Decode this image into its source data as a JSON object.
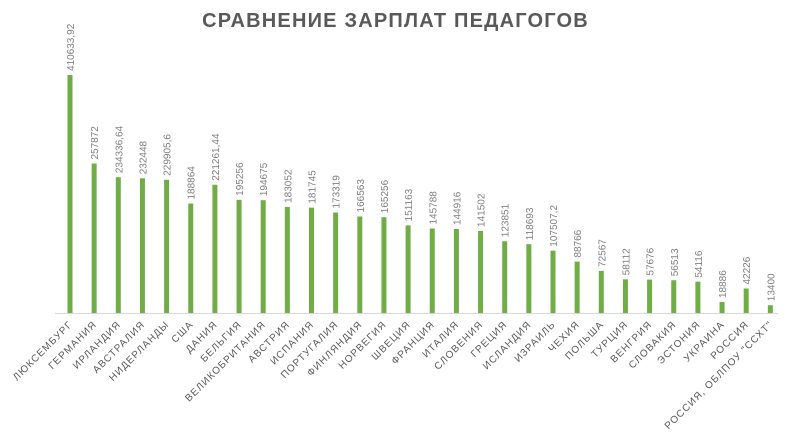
{
  "chart_data": {
    "type": "bar",
    "title": "СРАВНЕНИЕ ЗАРПЛАТ ПЕДАГОГОВ",
    "xlabel": "",
    "ylabel": "",
    "categories": [
      "ЛЮКСЕМБУРГ",
      "ГЕРМАНИЯ",
      "ИРЛАНДИЯ",
      "АВСТРАЛИЯ",
      "НИДЕРЛАНДЫ",
      "США",
      "ДАНИЯ",
      "БЕЛЬГИЯ",
      "ВЕЛИКОБРИТАНИЯ",
      "АВСТРИЯ",
      "ИСПАНИЯ",
      "ПОРТУГАЛИЯ",
      "ФИНЛЯНДИЯ",
      "НОРВЕГИЯ",
      "ШВЕЦИЯ",
      "ФРАНЦИЯ",
      "ИТАЛИЯ",
      "СЛОВЕНИЯ",
      "ГРЕЦИЯ",
      "ИСЛАНДИЯ",
      "ИЗРАИЛЬ",
      "ЧЕХИЯ",
      "ПОЛЬША",
      "ТУРЦИЯ",
      "ВЕНГРИЯ",
      "СЛОВАКИЯ",
      "ЭСТОНИЯ",
      "УКРАИНА",
      "РОССИЯ",
      "РОССИЯ, ОБЛПОУ \"ССХТ\""
    ],
    "values": [
      410633.92,
      257872,
      234336.64,
      232448,
      229905.6,
      188864,
      221261.44,
      195256,
      194675,
      183052,
      181745,
      173319,
      166563,
      165256,
      151163,
      145788,
      144916,
      141502,
      123851,
      118693,
      107507.2,
      88766,
      72567,
      58112,
      57676,
      56513,
      54116,
      18886,
      42226,
      13400
    ],
    "value_labels": [
      "410633,92",
      "257872",
      "234336,64",
      "232448",
      "229905,6",
      "188864",
      "221261,44",
      "195256",
      "194675",
      "183052",
      "181745",
      "173319",
      "166563",
      "165256",
      "151163",
      "145788",
      "144916",
      "141502",
      "123851",
      "118693",
      "107507,2",
      "88766",
      "72567",
      "58112",
      "57676",
      "56513",
      "54116",
      "18886",
      "42226",
      "13400"
    ],
    "ylim": [
      0,
      410633.92
    ],
    "grid": false,
    "legend": "none",
    "bar_color": "#70AD47"
  }
}
